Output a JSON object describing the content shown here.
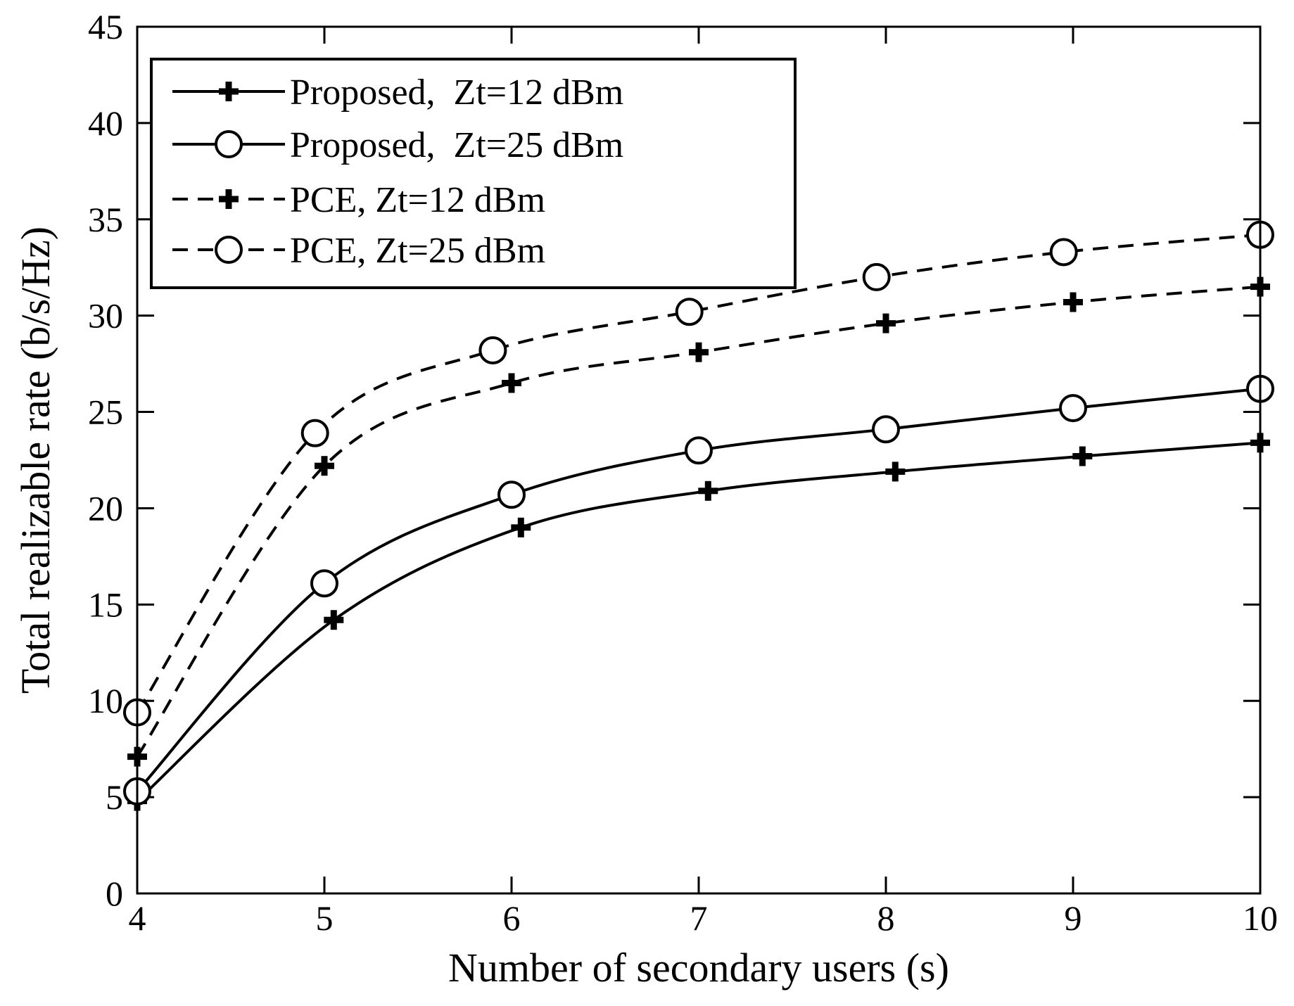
{
  "chart_data": {
    "type": "line",
    "title": "",
    "xlabel": "Number of secondary users (s)",
    "ylabel": "Total realizable rate (b/s/Hz)",
    "xlim": [
      4,
      10
    ],
    "ylim": [
      0,
      45
    ],
    "xticks": [
      4,
      5,
      6,
      7,
      8,
      9,
      10
    ],
    "yticks": [
      0,
      5,
      10,
      15,
      20,
      25,
      30,
      35,
      40,
      45
    ],
    "grid": false,
    "legend_position": "top-left",
    "series": [
      {
        "name": "Proposed,  Zt=12 dBm",
        "line": "solid",
        "marker": "plus",
        "x": [
          4,
          5.05,
          6.05,
          7.05,
          8.05,
          9.05,
          10
        ],
        "y": [
          4.8,
          14.2,
          19.0,
          20.9,
          21.9,
          22.7,
          23.4
        ]
      },
      {
        "name": "Proposed,  Zt=25 dBm",
        "line": "solid",
        "marker": "circle",
        "x": [
          4,
          5.0,
          6.0,
          7.0,
          8.0,
          9.0,
          10
        ],
        "y": [
          5.3,
          16.1,
          20.7,
          23.0,
          24.1,
          25.2,
          26.2
        ]
      },
      {
        "name": "PCE, Zt=12 dBm",
        "line": "dashed",
        "marker": "plus",
        "x": [
          4,
          5.0,
          6.0,
          7.0,
          8.0,
          9.0,
          10
        ],
        "y": [
          7.1,
          22.2,
          26.5,
          28.1,
          29.6,
          30.7,
          31.5
        ]
      },
      {
        "name": "PCE, Zt=25 dBm",
        "line": "dashed",
        "marker": "circle",
        "x": [
          4,
          4.95,
          5.9,
          6.95,
          7.95,
          8.95,
          10
        ],
        "y": [
          9.4,
          23.9,
          28.2,
          30.2,
          32.0,
          33.3,
          34.2
        ]
      }
    ]
  }
}
